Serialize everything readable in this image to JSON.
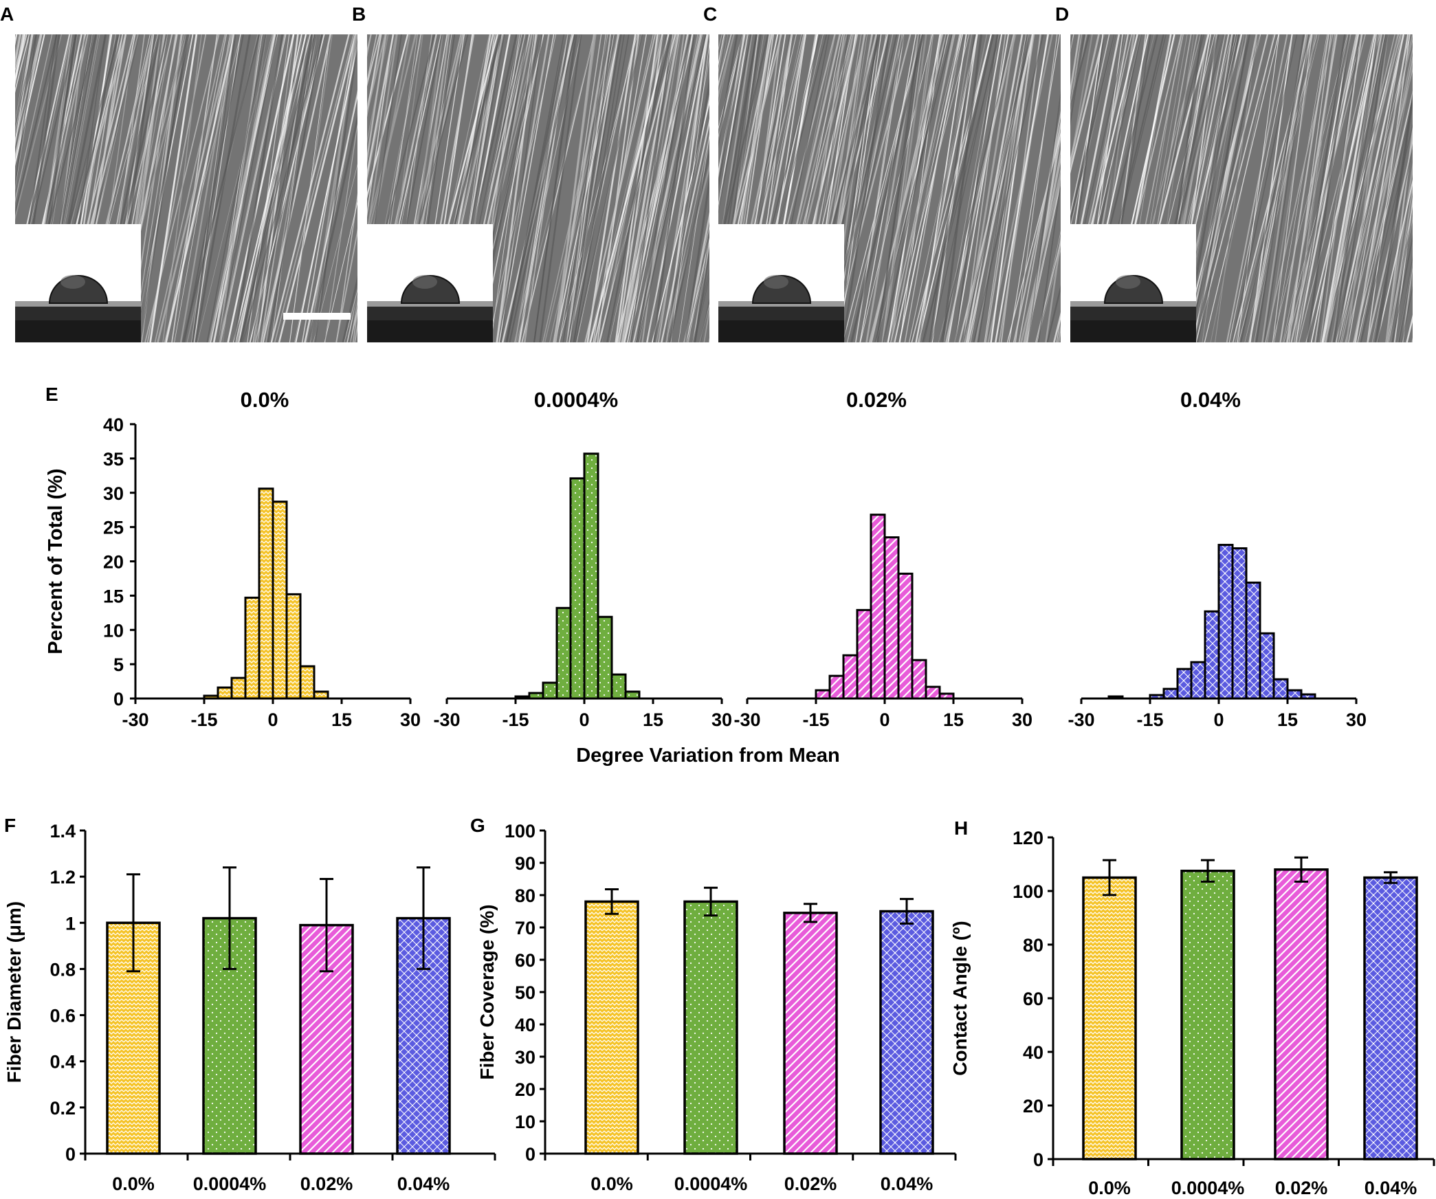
{
  "figure": {
    "panel_letters": [
      "A",
      "B",
      "C",
      "D",
      "E",
      "F",
      "G",
      "H"
    ],
    "groups": [
      "0.0%",
      "0.0004%",
      "0.02%",
      "0.04%"
    ],
    "group_colors": [
      "#F5C327",
      "#6FAE3F",
      "#E85BD9",
      "#5B5BE0"
    ],
    "photo_panels": [
      {
        "letter": "A",
        "description_icon": "sem-fiber-image",
        "has_scale_bar": true
      },
      {
        "letter": "B",
        "description_icon": "sem-fiber-image",
        "has_scale_bar": false
      },
      {
        "letter": "C",
        "description_icon": "sem-fiber-image",
        "has_scale_bar": false
      },
      {
        "letter": "D",
        "description_icon": "sem-fiber-image",
        "has_scale_bar": false
      }
    ]
  },
  "chart_data": [
    {
      "panel": "E",
      "type": "bar",
      "subtitle": "Degree Variation from Mean",
      "ylabel": "Percent of Total (%)",
      "ylim": [
        0,
        40
      ],
      "yticks": [
        0,
        5,
        10,
        15,
        20,
        25,
        30,
        35,
        40
      ],
      "xlim": [
        -30,
        30
      ],
      "xticks": [
        -30,
        -15,
        0,
        15,
        30
      ],
      "bin_width": 3,
      "bin_centers": [
        -25.5,
        -22.5,
        -19.5,
        -16.5,
        -13.5,
        -10.5,
        -7.5,
        -4.5,
        -1.5,
        1.5,
        4.5,
        7.5,
        10.5,
        13.5,
        16.5,
        19.5,
        22.5,
        25.5
      ],
      "series": [
        {
          "name": "0.0%",
          "title": "0.0%",
          "values": [
            0,
            0,
            0,
            0,
            0.4,
            1.6,
            3.0,
            14.7,
            30.6,
            28.7,
            15.2,
            4.7,
            1.0,
            0,
            0,
            0,
            0,
            0
          ]
        },
        {
          "name": "0.0004%",
          "title": "0.0004%",
          "values": [
            0,
            0,
            0,
            0,
            0.3,
            0.8,
            2.3,
            13.2,
            32.1,
            35.7,
            11.9,
            3.5,
            1.0,
            0,
            0,
            0,
            0,
            0
          ]
        },
        {
          "name": "0.02%",
          "title": "0.02%",
          "values": [
            0,
            0,
            0,
            0,
            1.2,
            3.3,
            6.3,
            12.9,
            26.8,
            23.5,
            18.2,
            5.6,
            1.7,
            0.7,
            0,
            0,
            0,
            0
          ]
        },
        {
          "name": "0.04%",
          "title": "0.04%",
          "values": [
            0,
            0.3,
            0,
            0,
            0.5,
            1.4,
            4.3,
            5.3,
            12.7,
            22.4,
            21.9,
            16.9,
            9.5,
            2.8,
            1.2,
            0.6,
            0,
            0
          ]
        }
      ]
    },
    {
      "panel": "F",
      "type": "bar",
      "ylabel": "Fiber Diameter (μm)",
      "ylim": [
        0,
        1.4
      ],
      "yticks": [
        "0",
        "0.2",
        "0.4",
        "0.6",
        "0.8",
        "1",
        "1.2",
        "1.4"
      ],
      "categories": [
        "0.0%",
        "0.0004%",
        "0.02%",
        "0.04%"
      ],
      "values": [
        1.0,
        1.02,
        0.99,
        1.02
      ],
      "errors": [
        0.21,
        0.22,
        0.2,
        0.22
      ]
    },
    {
      "panel": "G",
      "type": "bar",
      "ylabel": "Fiber Coverage (%)",
      "ylim": [
        0,
        100
      ],
      "yticks": [
        "0",
        "10",
        "20",
        "30",
        "40",
        "50",
        "60",
        "70",
        "80",
        "90",
        "100"
      ],
      "categories": [
        "0.0%",
        "0.0004%",
        "0.02%",
        "0.04%"
      ],
      "values": [
        78,
        78,
        74.5,
        75
      ],
      "errors": [
        3.8,
        4.3,
        2.8,
        3.8
      ]
    },
    {
      "panel": "H",
      "type": "bar",
      "ylabel": "Contact Angle (º)",
      "ylim": [
        0,
        120
      ],
      "yticks": [
        "0",
        "20",
        "40",
        "60",
        "80",
        "100",
        "120"
      ],
      "categories": [
        "0.0%",
        "0.0004%",
        "0.02%",
        "0.04%"
      ],
      "values": [
        105,
        107.5,
        108,
        105
      ],
      "errors": [
        6.5,
        4.0,
        4.5,
        2.0
      ]
    }
  ]
}
